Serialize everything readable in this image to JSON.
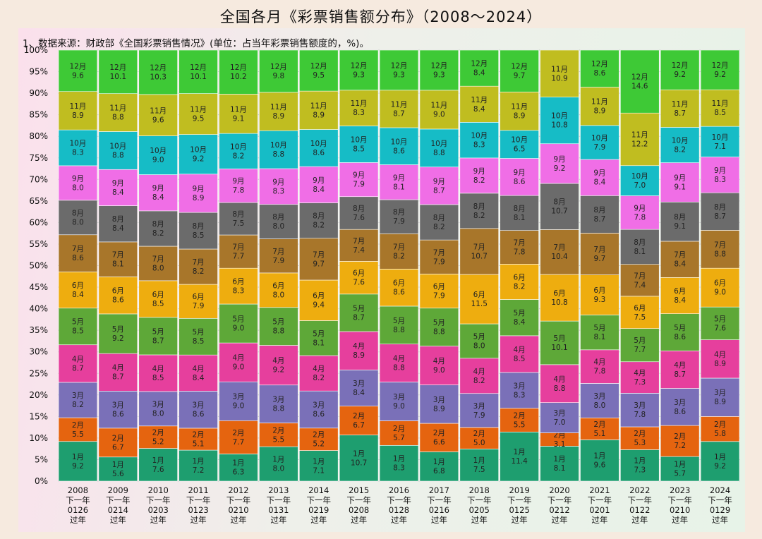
{
  "title": "全国各月《彩票销售额分布》（2008～2024）",
  "note": "1、数据来源：财政部《全国彩票销售情况》(单位：占当年彩票销售额度的，%)。",
  "chart_data": {
    "type": "bar",
    "stacked": true,
    "ylim": [
      0,
      100
    ],
    "y_ticks": [
      "0%",
      "5%",
      "10%",
      "15%",
      "20%",
      "25%",
      "30%",
      "35%",
      "40%",
      "45%",
      "50%",
      "55%",
      "60%",
      "65%",
      "70%",
      "75%",
      "80%",
      "85%",
      "90%",
      "95%",
      "100%"
    ],
    "x_line2": "下一年",
    "x_line4": "过年",
    "categories": [
      {
        "year": "2008",
        "date": "0126"
      },
      {
        "year": "2009",
        "date": "0214"
      },
      {
        "year": "2010",
        "date": "0203"
      },
      {
        "year": "2011",
        "date": "0123"
      },
      {
        "year": "2012",
        "date": "0210"
      },
      {
        "year": "2013",
        "date": "0131"
      },
      {
        "year": "2014",
        "date": "0219"
      },
      {
        "year": "2015",
        "date": "0208"
      },
      {
        "year": "2016",
        "date": "0128"
      },
      {
        "year": "2017",
        "date": "0216"
      },
      {
        "year": "2018",
        "date": "0205"
      },
      {
        "year": "2019",
        "date": "0125"
      },
      {
        "year": "2020",
        "date": "0212"
      },
      {
        "year": "2021",
        "date": "0201"
      },
      {
        "year": "2022",
        "date": "0122"
      },
      {
        "year": "2023",
        "date": "0210"
      },
      {
        "year": "2024",
        "date": "0129"
      }
    ],
    "series": [
      {
        "name": "1月",
        "color": "#1e9e6f",
        "values": [
          "9.2",
          "5.6",
          "7.6",
          "7.2",
          "6.3",
          "8.0",
          "7.1",
          "10.7",
          "8.3",
          "6.8",
          "7.5",
          "11.4",
          "8.1",
          "9.6",
          "7.3",
          "5.7",
          "9.2"
        ]
      },
      {
        "name": "2月",
        "color": "#e5640f",
        "values": [
          "5.5",
          "6.7",
          "5.2",
          "5.1",
          "7.7",
          "5.5",
          "5.2",
          "6.7",
          "5.7",
          "6.6",
          "5.0",
          "5.5",
          "3.1",
          "5.1",
          "5.3",
          "7.2",
          "5.8"
        ]
      },
      {
        "name": "3月",
        "color": "#7a70b8",
        "values": [
          "8.2",
          "8.6",
          "8.0",
          "8.6",
          "9.0",
          "8.8",
          "8.6",
          "8.4",
          "9.0",
          "8.9",
          "7.9",
          "8.3",
          "7.0",
          "8.0",
          "7.8",
          "8.6",
          "8.9"
        ]
      },
      {
        "name": "4月",
        "color": "#e63f9d",
        "values": [
          "8.7",
          "8.7",
          "8.5",
          "8.4",
          "9.0",
          "9.2",
          "8.2",
          "8.9",
          "8.8",
          "9.0",
          "8.2",
          "8.5",
          "8.8",
          "7.8",
          "7.3",
          "8.7",
          "8.9"
        ]
      },
      {
        "name": "5月",
        "color": "#5ea838",
        "values": [
          "8.5",
          "9.2",
          "8.7",
          "8.5",
          "9.0",
          "8.8",
          "8.1",
          "8.7",
          "8.8",
          "8.8",
          "8.0",
          "8.4",
          "10.1",
          "8.1",
          "7.7",
          "8.6",
          "7.6"
        ]
      },
      {
        "name": "6月",
        "color": "#eead0f",
        "values": [
          "8.4",
          "8.6",
          "8.5",
          "7.9",
          "8.3",
          "8.0",
          "9.4",
          "7.6",
          "8.6",
          "7.9",
          "11.5",
          "8.2",
          "10.8",
          "9.3",
          "7.5",
          "8.4",
          "9.0"
        ]
      },
      {
        "name": "7月",
        "color": "#a8762a",
        "values": [
          "8.6",
          "8.1",
          "8.0",
          "8.2",
          "7.7",
          "7.9",
          "9.7",
          "7.4",
          "8.2",
          "7.9",
          "10.7",
          "7.8",
          "10.4",
          "9.7",
          "7.4",
          "8.4",
          "8.8"
        ]
      },
      {
        "name": "8月",
        "color": "#6b6b6b",
        "values": [
          "8.0",
          "8.4",
          "8.2",
          "8.5",
          "7.5",
          "8.0",
          "8.2",
          "7.6",
          "7.9",
          "8.2",
          "8.2",
          "8.1",
          "10.7",
          "8.7",
          "8.1",
          "9.1",
          "8.7"
        ]
      },
      {
        "name": "9月",
        "color": "#f06ee6",
        "values": [
          "8.0",
          "8.4",
          "8.4",
          "8.9",
          "7.8",
          "8.3",
          "8.4",
          "7.9",
          "8.1",
          "8.7",
          "8.2",
          "8.6",
          "9.2",
          "8.4",
          "7.8",
          "9.1",
          "8.3"
        ]
      },
      {
        "name": "10月",
        "color": "#16bcc6",
        "values": [
          "8.3",
          "8.8",
          "9.0",
          "9.2",
          "8.2",
          "8.8",
          "8.6",
          "8.5",
          "8.6",
          "8.8",
          "8.3",
          "6.5",
          "10.8",
          "7.9",
          "7.0",
          "8.2",
          "7.1"
        ]
      },
      {
        "name": "11月",
        "color": "#c0bd20",
        "values": [
          "8.9",
          "8.8",
          "9.6",
          "9.5",
          "9.1",
          "8.9",
          "8.9",
          "8.3",
          "8.7",
          "9.0",
          "8.4",
          "8.9",
          "10.9",
          "8.9",
          "12.2",
          "8.7",
          "8.5"
        ]
      },
      {
        "name": "12月",
        "color": "#3ec936",
        "values": [
          "9.6",
          "10.1",
          "10.3",
          "10.1",
          "10.2",
          "9.8",
          "9.5",
          "9.3",
          "9.3",
          "9.3",
          "8.4",
          "9.7",
          "0",
          "8.6",
          "14.6",
          "9.2",
          "9.2"
        ]
      }
    ]
  }
}
